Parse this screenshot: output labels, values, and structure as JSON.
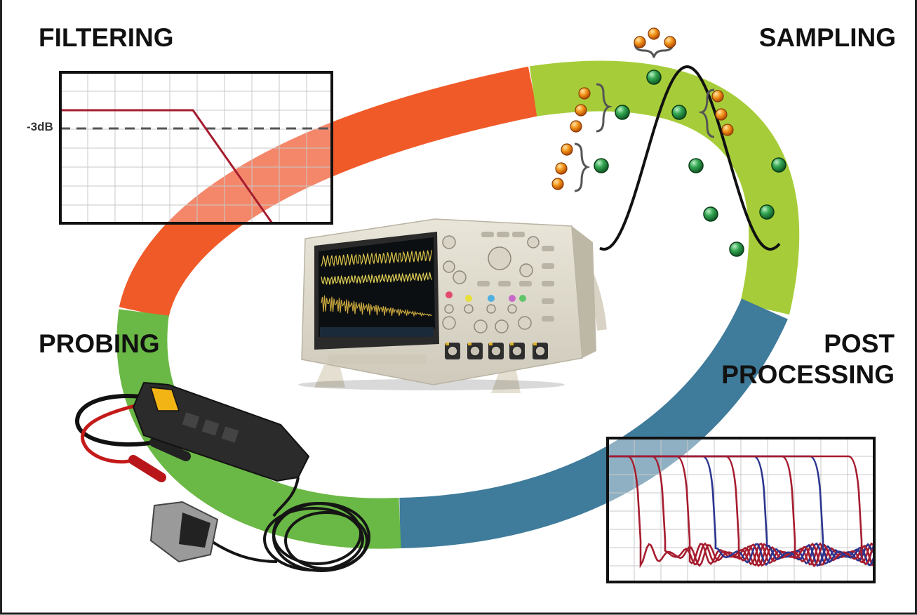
{
  "stages": {
    "filtering": "FILTERING",
    "sampling": "SAMPLING",
    "probing": "PROBING",
    "post_processing_line1": "POST",
    "post_processing_line2": "PROCESSING"
  },
  "filter_plot": {
    "cutoff_label": "-3dB"
  },
  "colors": {
    "filtering": "#f05a28",
    "filtering_light": "#f4876a",
    "sampling": "#a6cd39",
    "probing": "#6ab845",
    "post_processing": "#3f7b9a",
    "response_red": "#a61c2e",
    "response_blue": "#2b3590",
    "sample_green": "#2f9a4a",
    "sample_orange": "#f08a1a"
  },
  "icons": [
    "oscilloscope-icon",
    "probe-icon",
    "sine-wave-icon",
    "sample-dot-icon",
    "brace-icon"
  ]
}
